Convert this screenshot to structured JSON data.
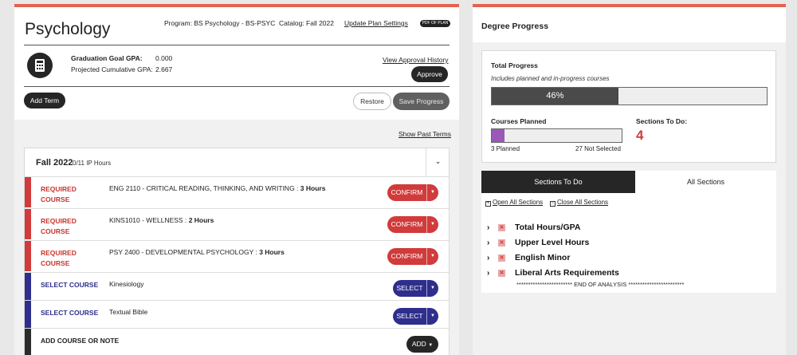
{
  "plan": {
    "title": "Psychology",
    "program": "Program: BS Psychology - BS-PSYC",
    "catalog": "Catalog: Fall 2022",
    "update_link": "Update Plan Settings",
    "pdf_label": "PDF OF PLAN",
    "grad_goal_label": "Graduation Goal GPA:",
    "grad_goal_value": "0.000",
    "projected_label": "Projected Cumulative GPA:",
    "projected_value": "2.667",
    "approval_link": "View Approval History",
    "approve_button": "Approve",
    "add_term_button": "Add Term",
    "restore_button": "Restore",
    "save_button": "Save Progress",
    "show_past_terms": "Show Past Terms",
    "icon": "calculator-icon"
  },
  "term": {
    "name": "Fall 2022",
    "hours": "0/11 IP Hours",
    "rows": [
      {
        "kind": "REQUIRED COURSE",
        "course": "ENG 2110 - CRITICAL READING, THINKING, AND WRITING : ",
        "hours": "3 Hours",
        "action": "CONFIRM",
        "type": "required"
      },
      {
        "kind": "REQUIRED COURSE",
        "course": "KINS1010 - WELLNESS : ",
        "hours": "2 Hours",
        "action": "CONFIRM",
        "type": "required"
      },
      {
        "kind": "REQUIRED COURSE",
        "course": "PSY 2400 - DEVELOPMENTAL PSYCHOLOGY : ",
        "hours": "3 Hours",
        "action": "CONFIRM",
        "type": "required"
      },
      {
        "kind": "SELECT COURSE",
        "course": "Kinesiology",
        "hours": "",
        "action": "SELECT",
        "type": "select"
      },
      {
        "kind": "SELECT COURSE",
        "course": "Textual Bible",
        "hours": "",
        "action": "SELECT",
        "type": "select"
      }
    ],
    "add_row_label": "ADD COURSE OR NOTE",
    "add_button": "ADD"
  },
  "progress": {
    "header": "Degree Progress",
    "total_label": "Total Progress",
    "total_sub": "Includes planned and in-progress courses",
    "total_percent_text": "46%",
    "total_fraction": 0.46,
    "planned_label": "Courses Planned",
    "planned_fraction": 0.1,
    "planned_count": "3 Planned",
    "not_selected": "27 Not Selected",
    "sections_todo_label": "Sections To Do:",
    "sections_todo_value": "4"
  },
  "sections": {
    "tab_todo": "Sections To Do",
    "tab_all": "All Sections",
    "open_all": "Open All Sections",
    "close_all": "Close All Sections",
    "items": [
      "Total Hours/GPA",
      "Upper Level Hours",
      "English Minor",
      "Liberal Arts Requirements"
    ],
    "end_text": "************************ END OF ANALYSIS ************************"
  },
  "colors": {
    "accent": "#e4614f",
    "required": "#d13b3b",
    "select": "#2e2e8c",
    "planned_bar": "#9b59b6"
  }
}
